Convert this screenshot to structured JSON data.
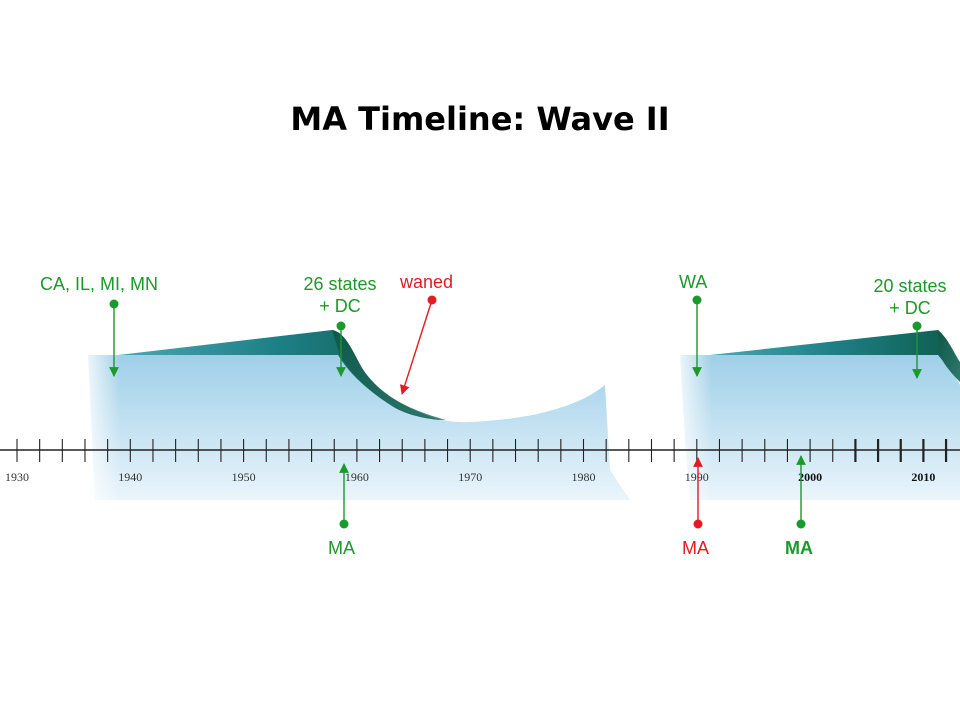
{
  "title": "MA Timeline: Wave II",
  "axis": {
    "years": [
      "1930",
      "1940",
      "1950",
      "1960",
      "1970",
      "1980",
      "1990",
      "2000",
      "2010"
    ],
    "bold_years": [
      "2000",
      "2010"
    ]
  },
  "labels": {
    "ca_il_mi_mn": "CA, IL, MI, MN",
    "states26_line1": "26 states",
    "states26_line2": "+ DC",
    "waned": "waned",
    "wa": "WA",
    "states20_line1": "20 states",
    "states20_line2": "+ DC",
    "ma_1958": "MA",
    "ma_1990": "MA",
    "ma_2000": "MA"
  },
  "colors": {
    "green": "#1a9a2a",
    "red": "#e31b23",
    "wave_dark": "#0f5b4a",
    "wave_teal": "#2b8a8a"
  }
}
